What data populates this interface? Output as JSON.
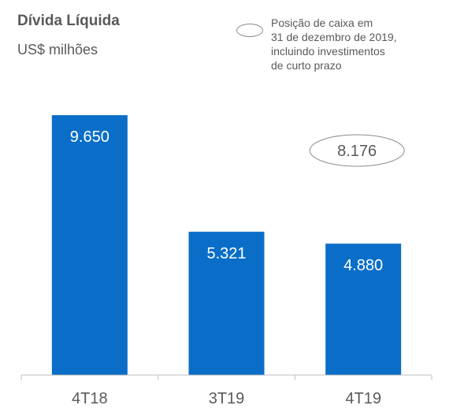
{
  "header": {
    "title": "Dívida Líquida",
    "subtitle": "US$ milhões"
  },
  "legend": {
    "lines": [
      "Posição de caixa em",
      "31 de dezembro de 2019,",
      "incluindo investimentos",
      "de curto prazo"
    ]
  },
  "chart_data": {
    "type": "bar",
    "title": "Dívida Líquida",
    "subtitle": "US$ milhões",
    "categories": [
      "4T18",
      "3T19",
      "4T19"
    ],
    "values": [
      9650,
      5321,
      4880
    ],
    "value_labels": [
      "9.650",
      "5.321",
      "4.880"
    ],
    "ylim": [
      0,
      11000
    ],
    "grid": false,
    "bar_color": "#0a6ec8",
    "annotation": {
      "label": "8.176",
      "description": "Posição de caixa em 31 de dezembro de 2019, incluindo investimentos de curto prazo",
      "style": "ellipse-outline"
    },
    "legend_position": "top-right"
  }
}
